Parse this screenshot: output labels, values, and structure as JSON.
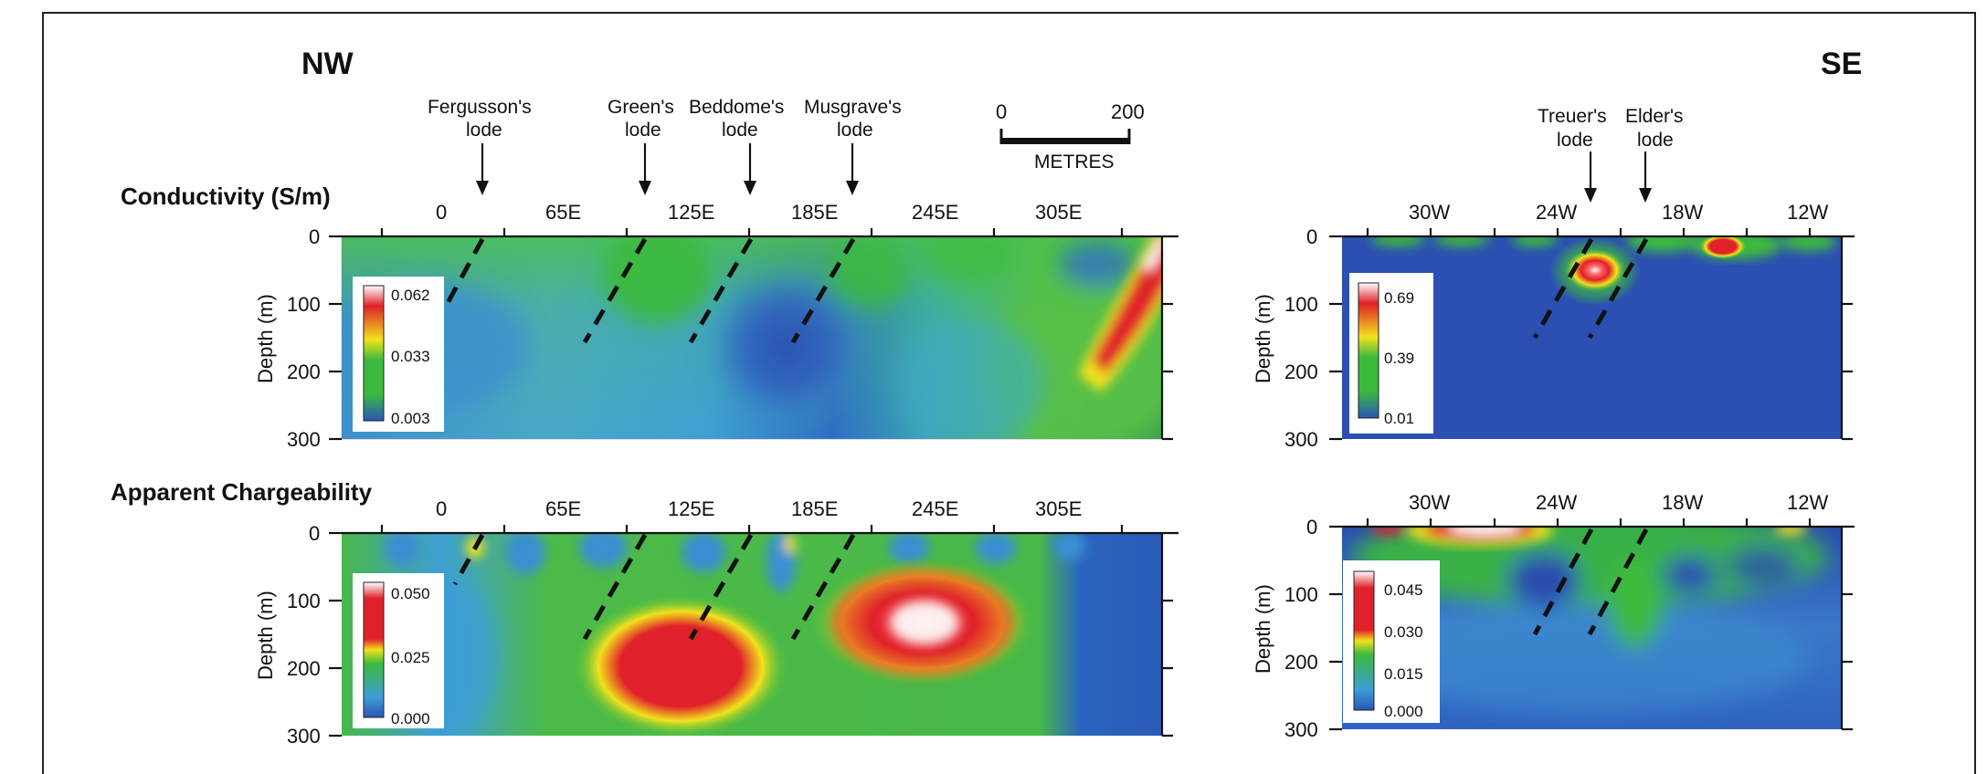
{
  "directions": {
    "left": "NW",
    "right": "SE"
  },
  "scale_bar": {
    "start": "0",
    "end": "200",
    "unit": "METRES"
  },
  "lodes_left": [
    {
      "name": "Fergusson's",
      "suffix": "lode"
    },
    {
      "name": "Green's",
      "suffix": "lode"
    },
    {
      "name": "Beddome's",
      "suffix": "lode"
    },
    {
      "name": "Musgrave's",
      "suffix": "lode"
    }
  ],
  "lodes_right": [
    {
      "name": "Treuer's",
      "suffix": "lode"
    },
    {
      "name": "Elder's",
      "suffix": "lode"
    }
  ],
  "panels": {
    "conductivity": {
      "title": "Conductivity (S/m)"
    },
    "chargeability": {
      "title": "Apparent  Chargeability"
    }
  },
  "x_ticks_left": [
    "0",
    "65E",
    "125E",
    "185E",
    "245E",
    "305E"
  ],
  "x_ticks_right": [
    "30W",
    "24W",
    "18W",
    "12W"
  ],
  "y_axis": {
    "label": "Depth (m)",
    "ticks": [
      "0",
      "100",
      "200",
      "300"
    ]
  },
  "legends": {
    "cond_left": [
      "0.062",
      "0.033",
      "0.003"
    ],
    "cond_right": [
      "0.69",
      "0.39",
      "0.01"
    ],
    "charge_left": [
      "0.050",
      "0.025",
      "0.000"
    ],
    "charge_right": [
      "0.045",
      "0.030",
      "0.015",
      "0.000"
    ]
  },
  "colors": {
    "low": "#2a55b8",
    "mid_low": "#3c9ed6",
    "mid": "#3cba3c",
    "mid_high": "#f2e21c",
    "high": "#e0202a",
    "peak": "#ffffff"
  }
}
